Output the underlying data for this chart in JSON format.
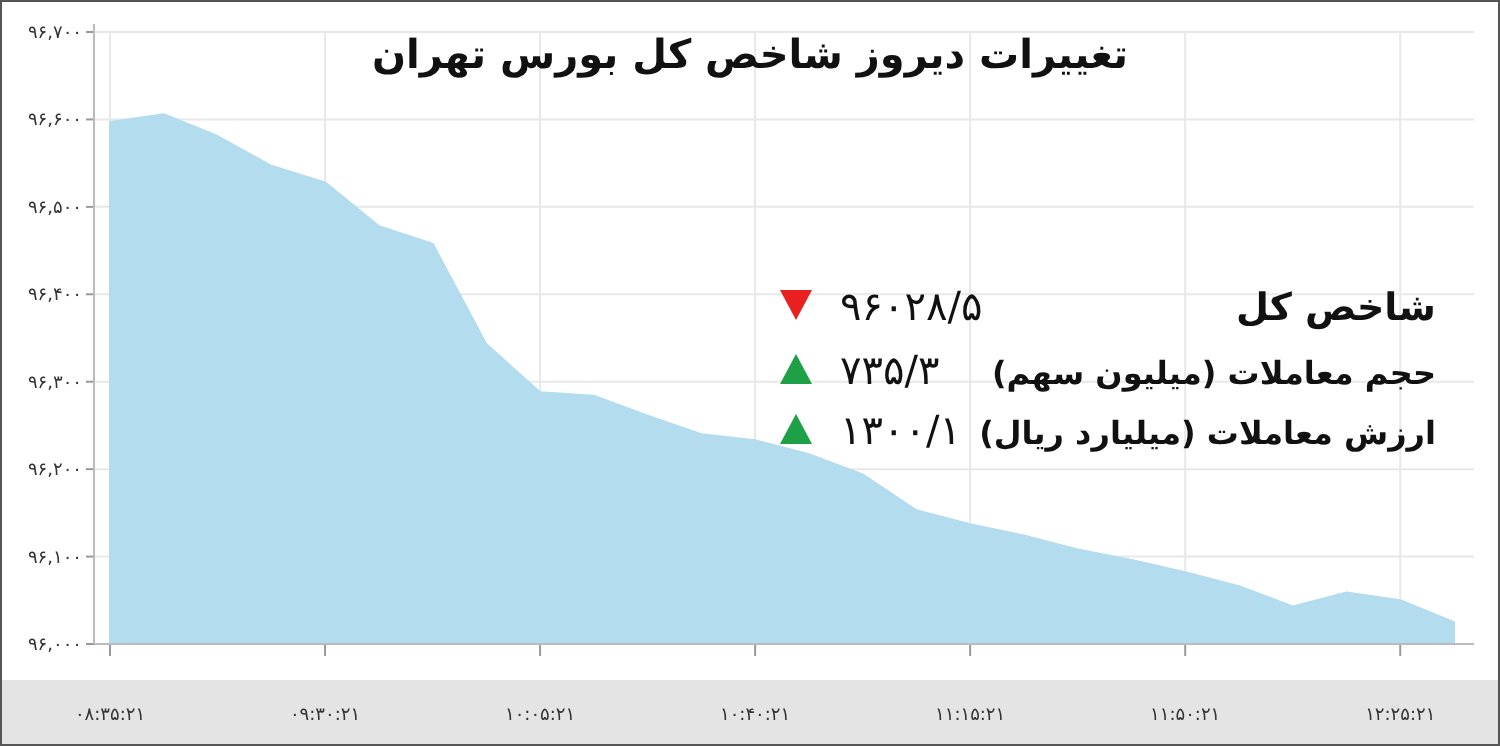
{
  "chart_data": {
    "type": "area",
    "title": "تغییرات دیروز شاخص کل بورس تهران",
    "categories": [
      "۰۸:۳۵:۲۱",
      null,
      null,
      null,
      "۰۹:۳۰:۲۱",
      null,
      null,
      null,
      "۱۰:۰۵:۲۱",
      null,
      null,
      null,
      "۱۰:۴۰:۲۱",
      null,
      null,
      null,
      "۱۱:۱۵:۲۱",
      null,
      null,
      null,
      "۱۱:۵۰:۲۱",
      null,
      null,
      null,
      "۱۲:۲۵:۲۱",
      null
    ],
    "series": [
      {
        "color": "#b3dcee",
        "values": [
          96597,
          96606,
          96581,
          96547,
          96528,
          96478,
          96458,
          96343,
          96288,
          96284,
          96261,
          96240,
          96233,
          96217,
          96194,
          96153,
          96137,
          96124,
          96108,
          96096,
          96082,
          96066,
          96043,
          96059,
          96050,
          96025
        ]
      }
    ],
    "ylim": [
      96000,
      96700
    ],
    "yticks": [
      {
        "value": 96000,
        "label": "۹۶,۰۰۰"
      },
      {
        "value": 96100,
        "label": "۹۶,۱۰۰"
      },
      {
        "value": 96200,
        "label": "۹۶,۲۰۰"
      },
      {
        "value": 96300,
        "label": "۹۶,۳۰۰"
      },
      {
        "value": 96400,
        "label": "۹۶,۴۰۰"
      },
      {
        "value": 96500,
        "label": "۹۶,۵۰۰"
      },
      {
        "value": 96600,
        "label": "۹۶,۶۰۰"
      },
      {
        "value": 96700,
        "label": "۹۶,۷۰۰"
      }
    ],
    "grid": true,
    "annotations": [
      "شاخص کل",
      "۹۶۰۲۸/۵",
      "حجم معاملات (میلیون سهم)",
      "۷۳۵/۳",
      "ارزش معاملات (میلیارد ریال)",
      "۱۳۰۰/۱"
    ]
  }
}
